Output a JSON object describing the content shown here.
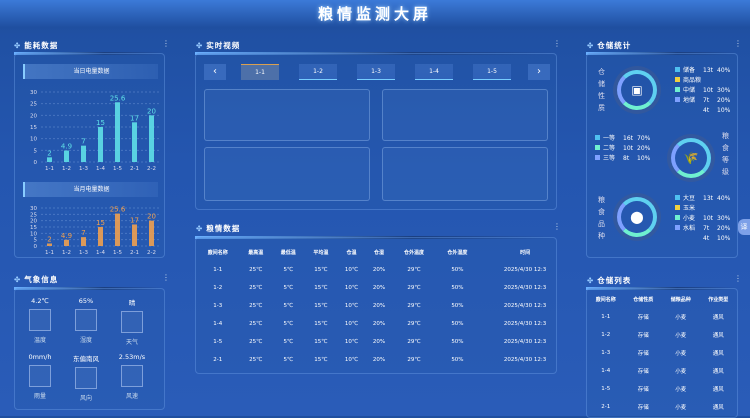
{
  "title": "粮情监测大屏",
  "energy": {
    "title": "能耗数据",
    "daily": {
      "title": "当日电量数据"
    },
    "monthly": {
      "title": "当月电量数据"
    }
  },
  "chart_data": [
    {
      "type": "bar",
      "title": "当日电量数据",
      "categories": [
        "1-1",
        "1-2",
        "1-3",
        "1-4",
        "1-5",
        "2-1",
        "2-2"
      ],
      "values": [
        2,
        4.9,
        7,
        15,
        25.6,
        17,
        20
      ],
      "yticks": [
        0,
        5,
        10,
        15,
        20,
        25,
        30
      ],
      "ylim": [
        0,
        30
      ],
      "color": "#5fe0e8",
      "grid": true
    },
    {
      "type": "bar",
      "title": "当月电量数据",
      "categories": [
        "1-1",
        "1-2",
        "1-3",
        "1-4",
        "1-5",
        "2-1",
        "2-2"
      ],
      "values": [
        2,
        4.9,
        7,
        15,
        25.6,
        17,
        20
      ],
      "yticks": [
        0,
        5,
        10,
        15,
        20,
        25,
        30
      ],
      "ylim": [
        0,
        30
      ],
      "color": "#f0a050",
      "grid": true
    }
  ],
  "weather": {
    "title": "气象信息",
    "items": [
      {
        "value": "4.2℃",
        "label": "温度"
      },
      {
        "value": "65%",
        "label": "湿度"
      },
      {
        "value": "晴",
        "label": "天气"
      },
      {
        "value": "0mm/h",
        "label": "雨量"
      },
      {
        "value": "东偏南风",
        "label": "风向"
      },
      {
        "value": "2.53m/s",
        "label": "风速"
      }
    ]
  },
  "video": {
    "title": "实时视频",
    "prev": "‹",
    "next": "›",
    "tabs": [
      "1-1",
      "1-2",
      "1-3",
      "1-4",
      "1-5"
    ]
  },
  "grain": {
    "title": "粮情数据",
    "headers": [
      "廒间名称",
      "最高温",
      "最低温",
      "平均温",
      "仓温",
      "仓湿",
      "仓外温度",
      "仓外湿度",
      "时间"
    ],
    "rows": [
      [
        "1-1",
        "25℃",
        "5℃",
        "15℃",
        "10℃",
        "20%",
        "29℃",
        "50%",
        "2025/4/30 12:3"
      ],
      [
        "1-2",
        "25℃",
        "5℃",
        "15℃",
        "10℃",
        "20%",
        "29℃",
        "50%",
        "2025/4/30 12:3"
      ],
      [
        "1-3",
        "25℃",
        "5℃",
        "15℃",
        "10℃",
        "20%",
        "29℃",
        "50%",
        "2025/4/30 12:3"
      ],
      [
        "1-4",
        "25℃",
        "5℃",
        "15℃",
        "10℃",
        "20%",
        "29℃",
        "50%",
        "2025/4/30 12:3"
      ],
      [
        "1-5",
        "25℃",
        "5℃",
        "15℃",
        "10℃",
        "20%",
        "29℃",
        "50%",
        "2025/4/30 12:3"
      ],
      [
        "2-1",
        "25℃",
        "5℃",
        "15℃",
        "10℃",
        "20%",
        "29℃",
        "50%",
        "2025/4/30 12:3"
      ]
    ]
  },
  "stats": {
    "title": "仓储统计",
    "nature": {
      "label": "仓储性质",
      "items": [
        {
          "name": "储备",
          "amount": "13t",
          "pct": "40%",
          "color": "#4fc0f0"
        },
        {
          "name": "商品粮",
          "amount": "",
          "pct": "",
          "color": "#f0d040"
        },
        {
          "name": "中储",
          "amount": "10t",
          "pct": "30%",
          "color": "#6ff0d0"
        },
        {
          "name": "地储",
          "amount": "7t",
          "pct": "20%",
          "color": "#7ea0ff"
        },
        {
          "name": "",
          "amount": "4t",
          "pct": "10%",
          "color": ""
        }
      ]
    },
    "grade": {
      "label": "粮食等级",
      "items": [
        {
          "name": "一等",
          "amount": "16t",
          "pct": "70%",
          "color": "#4fc0f0"
        },
        {
          "name": "二等",
          "amount": "10t",
          "pct": "20%",
          "color": "#6ff0d0"
        },
        {
          "name": "三等",
          "amount": "8t",
          "pct": "10%",
          "color": "#7ea0ff"
        }
      ]
    },
    "variety": {
      "label": "粮食品种",
      "items": [
        {
          "name": "大豆",
          "amount": "13t",
          "pct": "40%",
          "color": "#4fc0f0"
        },
        {
          "name": "玉米",
          "amount": "",
          "pct": "",
          "color": "#f0d040"
        },
        {
          "name": "小麦",
          "amount": "10t",
          "pct": "30%",
          "color": "#6ff0d0"
        },
        {
          "name": "水稻",
          "amount": "7t",
          "pct": "20%",
          "color": "#7ea0ff"
        },
        {
          "name": "",
          "amount": "4t",
          "pct": "10%",
          "color": ""
        }
      ]
    }
  },
  "storage": {
    "title": "仓储列表",
    "headers": [
      "廒间名称",
      "仓储性质",
      "储粮品种",
      "作业类型"
    ],
    "rows": [
      [
        "1-1",
        "存储",
        "小麦",
        "通风"
      ],
      [
        "1-2",
        "存储",
        "小麦",
        "通风"
      ],
      [
        "1-3",
        "存储",
        "小麦",
        "通风"
      ],
      [
        "1-4",
        "存储",
        "小麦",
        "通风"
      ],
      [
        "1-5",
        "存储",
        "小麦",
        "通风"
      ],
      [
        "2-1",
        "存储",
        "小麦",
        "通风"
      ]
    ]
  },
  "translate": "译"
}
